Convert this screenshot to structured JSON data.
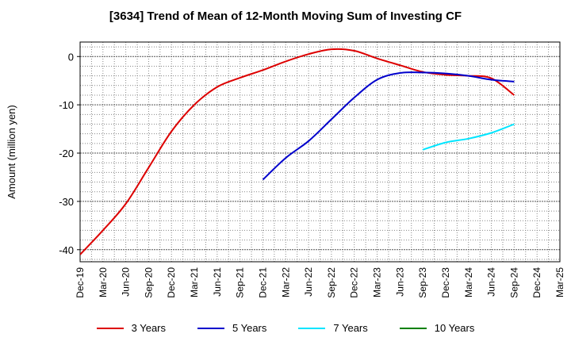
{
  "chart_data": {
    "type": "line",
    "title": "[3634]  Trend of Mean of 12-Month Moving Sum of Investing CF",
    "xlabel": "",
    "ylabel": "Amount (million yen)",
    "ylim": [
      -42.5,
      3
    ],
    "yticks": [
      0,
      -10,
      -20,
      -30,
      -40
    ],
    "x_ticks": [
      "Dec-19",
      "Mar-20",
      "Jun-20",
      "Sep-20",
      "Dec-20",
      "Mar-21",
      "Jun-21",
      "Sep-21",
      "Dec-21",
      "Mar-22",
      "Jun-22",
      "Sep-22",
      "Dec-22",
      "Mar-23",
      "Jun-23",
      "Sep-23",
      "Dec-23",
      "Mar-24",
      "Jun-24",
      "Sep-24",
      "Dec-24",
      "Mar-25"
    ],
    "grid": true,
    "legend_position": "bottom",
    "series": [
      {
        "name": "3 Years",
        "color": "#dd0000",
        "points": [
          [
            "Dec-19",
            -41.0
          ],
          [
            "Mar-20",
            -36.0
          ],
          [
            "Jun-20",
            -30.5
          ],
          [
            "Sep-20",
            -23.0
          ],
          [
            "Dec-20",
            -15.5
          ],
          [
            "Mar-21",
            -10.0
          ],
          [
            "Jun-21",
            -6.3
          ],
          [
            "Sep-21",
            -4.4
          ],
          [
            "Dec-21",
            -2.8
          ],
          [
            "Mar-22",
            -1.0
          ],
          [
            "Jun-22",
            0.5
          ],
          [
            "Sep-22",
            1.5
          ],
          [
            "Dec-22",
            1.2
          ],
          [
            "Mar-23",
            -0.4
          ],
          [
            "Jun-23",
            -1.8
          ],
          [
            "Sep-23",
            -3.2
          ],
          [
            "Dec-23",
            -3.8
          ],
          [
            "Mar-24",
            -4.0
          ],
          [
            "Jun-24",
            -4.5
          ],
          [
            "Sep-24",
            -8.0
          ]
        ]
      },
      {
        "name": "5 Years",
        "color": "#0000cc",
        "points": [
          [
            "Dec-21",
            -25.5
          ],
          [
            "Mar-22",
            -21.0
          ],
          [
            "Jun-22",
            -17.5
          ],
          [
            "Sep-22",
            -13.0
          ],
          [
            "Dec-22",
            -8.5
          ],
          [
            "Mar-23",
            -4.8
          ],
          [
            "Jun-23",
            -3.4
          ],
          [
            "Sep-23",
            -3.3
          ],
          [
            "Dec-23",
            -3.5
          ],
          [
            "Mar-24",
            -4.0
          ],
          [
            "Jun-24",
            -4.8
          ],
          [
            "Sep-24",
            -5.2
          ]
        ]
      },
      {
        "name": "7 Years",
        "color": "#00e5ff",
        "points": [
          [
            "Sep-23",
            -19.3
          ],
          [
            "Dec-23",
            -17.8
          ],
          [
            "Mar-24",
            -17.0
          ],
          [
            "Jun-24",
            -15.8
          ],
          [
            "Sep-24",
            -14.0
          ]
        ]
      },
      {
        "name": "10 Years",
        "color": "#008000",
        "points": []
      }
    ]
  }
}
